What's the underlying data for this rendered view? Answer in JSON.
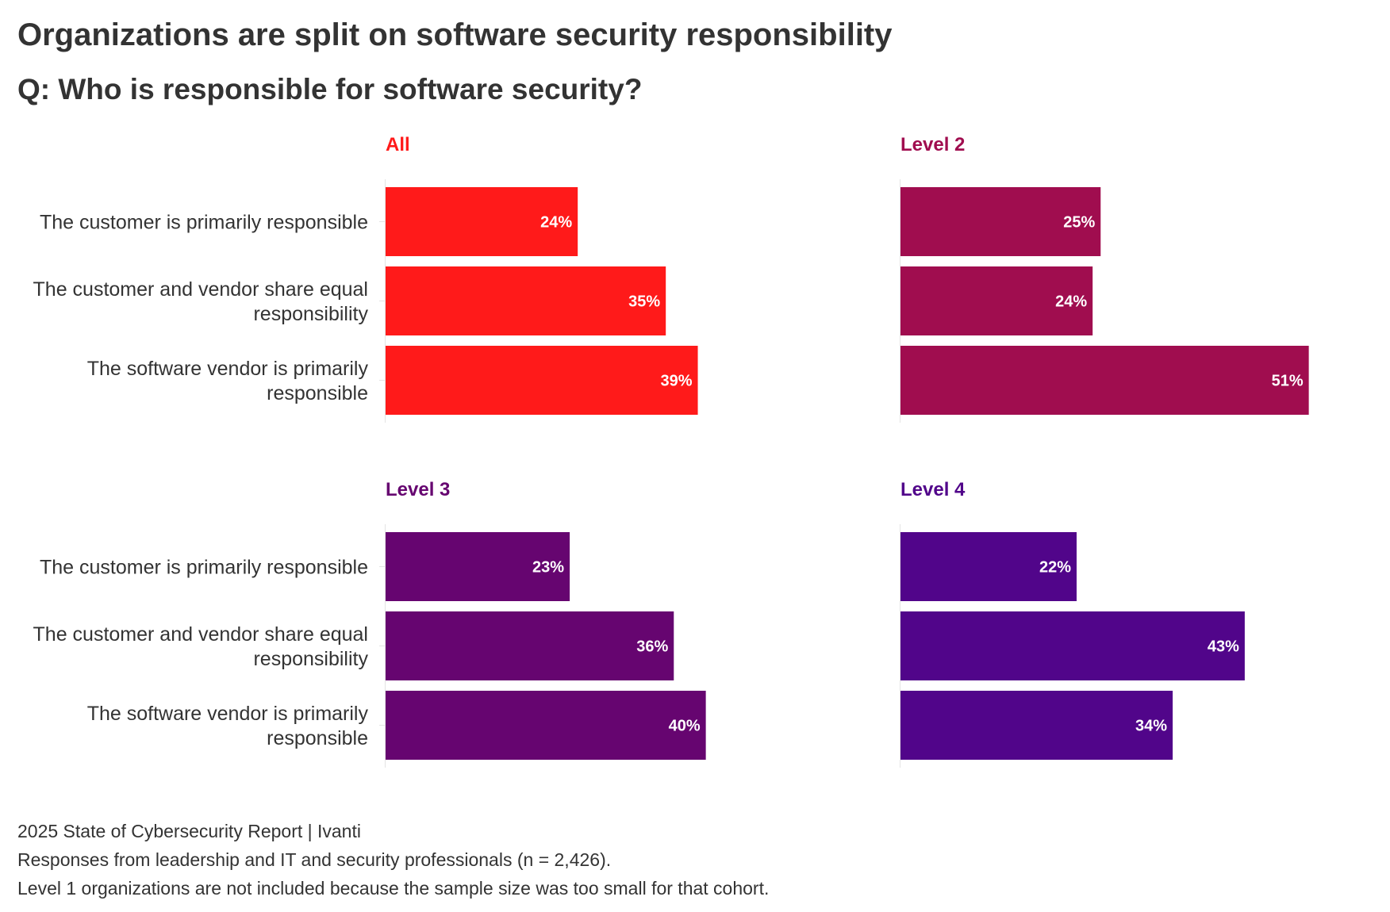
{
  "header": {
    "title": "Organizations are split on software security responsibility",
    "subtitle": "Q: Who is responsible for software security?"
  },
  "chart_data": {
    "type": "bar",
    "orientation": "horizontal",
    "categories": [
      "The customer is primarily responsible",
      "The customer and vendor share equal responsibility",
      "The software vendor is primarily responsible"
    ],
    "category_lines": [
      [
        "The customer is primarily responsible"
      ],
      [
        "The customer and vendor share equal",
        "responsibility"
      ],
      [
        "The software vendor is primarily",
        "responsible"
      ]
    ],
    "value_suffix": "%",
    "xlim": [
      0,
      55
    ],
    "panels": [
      {
        "name": "All",
        "color": "#ff1a1a",
        "values": [
          24,
          35,
          39
        ]
      },
      {
        "name": "Level 2",
        "color": "#a00d4f",
        "values": [
          25,
          24,
          51
        ]
      },
      {
        "name": "Level 3",
        "color": "#660570",
        "values": [
          23,
          36,
          40
        ]
      },
      {
        "name": "Level 4",
        "color": "#51058a",
        "values": [
          22,
          43,
          34
        ]
      }
    ]
  },
  "footer": {
    "source": "2025 State of Cybersecurity Report | Ivanti",
    "note1": "Responses from leadership and IT and security professionals (n = 2,426).",
    "note2": "Level 1 organizations are not included because the sample size was too small for that cohort."
  }
}
